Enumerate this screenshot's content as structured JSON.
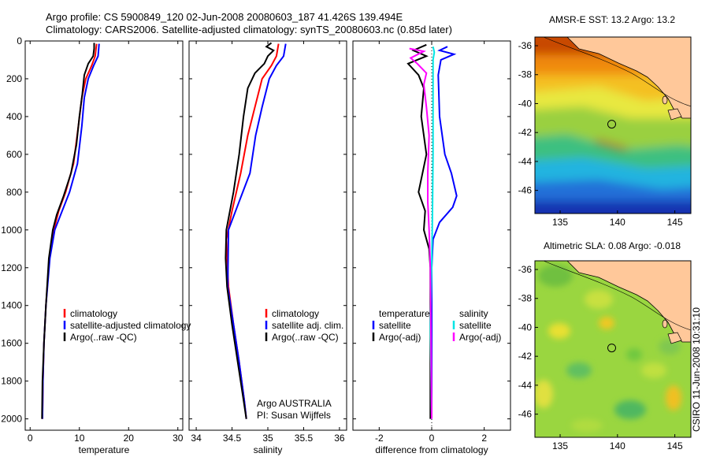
{
  "header": {
    "line1": "Argo profile: CS 5900849_120 02-Jun-2008 20080603_187 41.426S 139.494E",
    "line2": "Climatology: CARS2006. Satellite-adjusted climatology: synTS_20080603.nc (0.85d later)"
  },
  "stamp": "CSIRO 11-Jun-2008 10:31:10",
  "chart_data": [
    {
      "type": "line",
      "panel": "temperature",
      "xlabel": "temperature",
      "ylabel": "",
      "xlim": [
        -1,
        31
      ],
      "ylim": [
        2060,
        0
      ],
      "y_reversed": true,
      "xticks": [
        0,
        10,
        20,
        30
      ],
      "yticks": [
        0,
        200,
        400,
        600,
        800,
        1000,
        1200,
        1400,
        1600,
        1800,
        2000
      ],
      "legend": {
        "position": "lower-right",
        "entries": [
          "climatology",
          "satellite-adjusted climatology",
          "Argo(..raw -QC)"
        ]
      },
      "series": [
        {
          "name": "climatology",
          "color": "#ff0000",
          "points": [
            [
              13.5,
              15
            ],
            [
              13.2,
              80
            ],
            [
              12.5,
              130
            ],
            [
              11.3,
              200
            ],
            [
              10.5,
              300
            ],
            [
              9.8,
              450
            ],
            [
              8.8,
              650
            ],
            [
              7.2,
              800
            ],
            [
              5.8,
              900
            ],
            [
              4.8,
              1000
            ],
            [
              3.9,
              1150
            ],
            [
              3.2,
              1400
            ],
            [
              2.8,
              1600
            ],
            [
              2.6,
              1800
            ],
            [
              2.5,
              2000
            ]
          ]
        },
        {
          "name": "satellite-adjusted climatology",
          "color": "#0000ff",
          "points": [
            [
              14.0,
              15
            ],
            [
              13.8,
              80
            ],
            [
              12.9,
              130
            ],
            [
              11.8,
              200
            ],
            [
              11.0,
              300
            ],
            [
              10.5,
              450
            ],
            [
              9.6,
              650
            ],
            [
              8.0,
              800
            ],
            [
              6.5,
              900
            ],
            [
              5.0,
              1000
            ],
            [
              4.0,
              1150
            ],
            [
              3.2,
              1400
            ],
            [
              2.8,
              1600
            ],
            [
              2.6,
              1800
            ],
            [
              2.5,
              2000
            ]
          ]
        },
        {
          "name": "Argo(..raw -QC)",
          "color": "#000000",
          "points": [
            [
              13.0,
              10
            ],
            [
              13.0,
              40
            ],
            [
              12.8,
              80
            ],
            [
              11.8,
              120
            ],
            [
              11.0,
              180
            ],
            [
              10.6,
              280
            ],
            [
              10.0,
              400
            ],
            [
              9.4,
              550
            ],
            [
              8.3,
              700
            ],
            [
              6.8,
              820
            ],
            [
              5.4,
              920
            ],
            [
              4.6,
              1000
            ],
            [
              3.8,
              1150
            ],
            [
              3.2,
              1400
            ],
            [
              2.8,
              1600
            ],
            [
              2.5,
              1800
            ],
            [
              2.4,
              2000
            ]
          ]
        }
      ]
    },
    {
      "type": "line",
      "panel": "salinity",
      "xlabel": "salinity",
      "ylabel": "",
      "xlim": [
        33.9,
        36.1
      ],
      "ylim": [
        2060,
        0
      ],
      "y_reversed": true,
      "xticks": [
        34,
        34.5,
        35,
        35.5,
        36
      ],
      "xticklabels": [
        "34",
        "34.5",
        "35",
        "35.5",
        "36"
      ],
      "legend": {
        "position": "lower-right",
        "entries": [
          "climatology",
          "satellite adj. clim.",
          "Argo(..raw -QC)"
        ]
      },
      "annotations": [
        "Argo AUSTRALIA",
        "PI: Susan Wijffels"
      ],
      "series": [
        {
          "name": "climatology",
          "color": "#ff0000",
          "points": [
            [
              35.15,
              15
            ],
            [
              35.12,
              80
            ],
            [
              35.05,
              130
            ],
            [
              34.92,
              200
            ],
            [
              34.82,
              350
            ],
            [
              34.72,
              500
            ],
            [
              34.62,
              700
            ],
            [
              34.5,
              900
            ],
            [
              34.42,
              1050
            ],
            [
              34.45,
              1300
            ],
            [
              34.52,
              1500
            ],
            [
              34.6,
              1700
            ],
            [
              34.67,
              1900
            ],
            [
              34.7,
              2000
            ]
          ]
        },
        {
          "name": "satellite adj. clim.",
          "color": "#0000ff",
          "points": [
            [
              35.25,
              15
            ],
            [
              35.22,
              80
            ],
            [
              35.12,
              130
            ],
            [
              35.02,
              200
            ],
            [
              34.92,
              350
            ],
            [
              34.83,
              500
            ],
            [
              34.75,
              700
            ],
            [
              34.6,
              850
            ],
            [
              34.45,
              1000
            ],
            [
              34.44,
              1300
            ],
            [
              34.52,
              1500
            ],
            [
              34.6,
              1700
            ],
            [
              34.67,
              1900
            ],
            [
              34.7,
              2000
            ]
          ]
        },
        {
          "name": "Argo(..raw -QC)",
          "color": "#000000",
          "points": [
            [
              35.05,
              10
            ],
            [
              34.98,
              30
            ],
            [
              35.08,
              50
            ],
            [
              35.0,
              80
            ],
            [
              34.95,
              120
            ],
            [
              34.82,
              170
            ],
            [
              34.72,
              250
            ],
            [
              34.66,
              400
            ],
            [
              34.6,
              600
            ],
            [
              34.52,
              800
            ],
            [
              34.42,
              1000
            ],
            [
              34.41,
              1150
            ],
            [
              34.43,
              1300
            ],
            [
              34.5,
              1500
            ],
            [
              34.58,
              1700
            ],
            [
              34.66,
              1900
            ],
            [
              34.7,
              2000
            ]
          ]
        }
      ]
    },
    {
      "type": "line",
      "panel": "difference",
      "xlabel": "difference from climatology",
      "ylabel": "",
      "xlim": [
        -3,
        3
      ],
      "ylim": [
        2060,
        0
      ],
      "y_reversed": true,
      "xticks": [
        -2,
        0,
        2
      ],
      "legend": {
        "position": "lower-center",
        "entries": [
          "temperature",
          "satellite",
          "Argo(-adj)",
          "salinity",
          "satellite",
          "Argo(-adj)"
        ]
      },
      "series": [
        {
          "name": "temperature satellite",
          "color": "#0000ff",
          "points": [
            [
              0.6,
              30
            ],
            [
              0.3,
              50
            ],
            [
              0.85,
              70
            ],
            [
              0.35,
              100
            ],
            [
              0.25,
              180
            ],
            [
              0.3,
              400
            ],
            [
              0.5,
              600
            ],
            [
              0.75,
              700
            ],
            [
              0.95,
              820
            ],
            [
              0.8,
              880
            ],
            [
              0.3,
              960
            ],
            [
              0.05,
              1050
            ],
            [
              0.0,
              1200
            ],
            [
              0.0,
              2000
            ]
          ]
        },
        {
          "name": "temperature Argo(-adj)",
          "color": "#000000",
          "points": [
            [
              -0.2,
              20
            ],
            [
              -0.7,
              50
            ],
            [
              -0.2,
              80
            ],
            [
              -0.9,
              120
            ],
            [
              -0.5,
              180
            ],
            [
              -0.3,
              250
            ],
            [
              -0.4,
              400
            ],
            [
              -0.2,
              600
            ],
            [
              -0.35,
              700
            ],
            [
              -0.5,
              800
            ],
            [
              -0.25,
              900
            ],
            [
              -0.3,
              1000
            ],
            [
              -0.1,
              1100
            ],
            [
              -0.05,
              1200
            ],
            [
              -0.05,
              2000
            ]
          ]
        },
        {
          "name": "salinity satellite",
          "color": "#00e5e5",
          "points": [
            [
              0.05,
              30
            ],
            [
              0.1,
              60
            ],
            [
              0.05,
              100
            ],
            [
              0.05,
              300
            ],
            [
              0.05,
              600
            ],
            [
              0.03,
              900
            ],
            [
              0.0,
              1200
            ],
            [
              -0.05,
              1500
            ],
            [
              0.0,
              2000
            ]
          ]
        },
        {
          "name": "salinity Argo(-adj)",
          "color": "#ff00ff",
          "points": [
            [
              -0.85,
              40
            ],
            [
              -0.3,
              55
            ],
            [
              -0.8,
              90
            ],
            [
              -0.55,
              120
            ],
            [
              -0.2,
              170
            ],
            [
              -0.3,
              230
            ],
            [
              -0.2,
              350
            ],
            [
              -0.1,
              500
            ],
            [
              -0.15,
              700
            ],
            [
              -0.15,
              850
            ],
            [
              -0.1,
              1000
            ],
            [
              -0.05,
              1200
            ],
            [
              0.0,
              2000
            ]
          ]
        }
      ]
    },
    {
      "type": "heatmap",
      "panel": "sst-map",
      "title": "AMSR-E SST: 13.2 Argo: 13.2",
      "xlim": [
        132.8,
        146.4
      ],
      "ylim": [
        -47.6,
        -35.4
      ],
      "xticks": [
        135,
        140,
        145
      ],
      "yticks": [
        -36,
        -38,
        -40,
        -42,
        -44,
        -46
      ],
      "argo_position": [
        139.494,
        -41.426
      ]
    },
    {
      "type": "heatmap",
      "panel": "sla-map",
      "title": "Altimetric SLA: 0.08 Argo: -0.018",
      "xlim": [
        132.8,
        146.4
      ],
      "ylim": [
        -47.6,
        -35.4
      ],
      "xticks": [
        135,
        140,
        145
      ],
      "yticks": [
        -36,
        -38,
        -40,
        -42,
        -44,
        -46
      ],
      "argo_position": [
        139.494,
        -41.426
      ]
    }
  ]
}
